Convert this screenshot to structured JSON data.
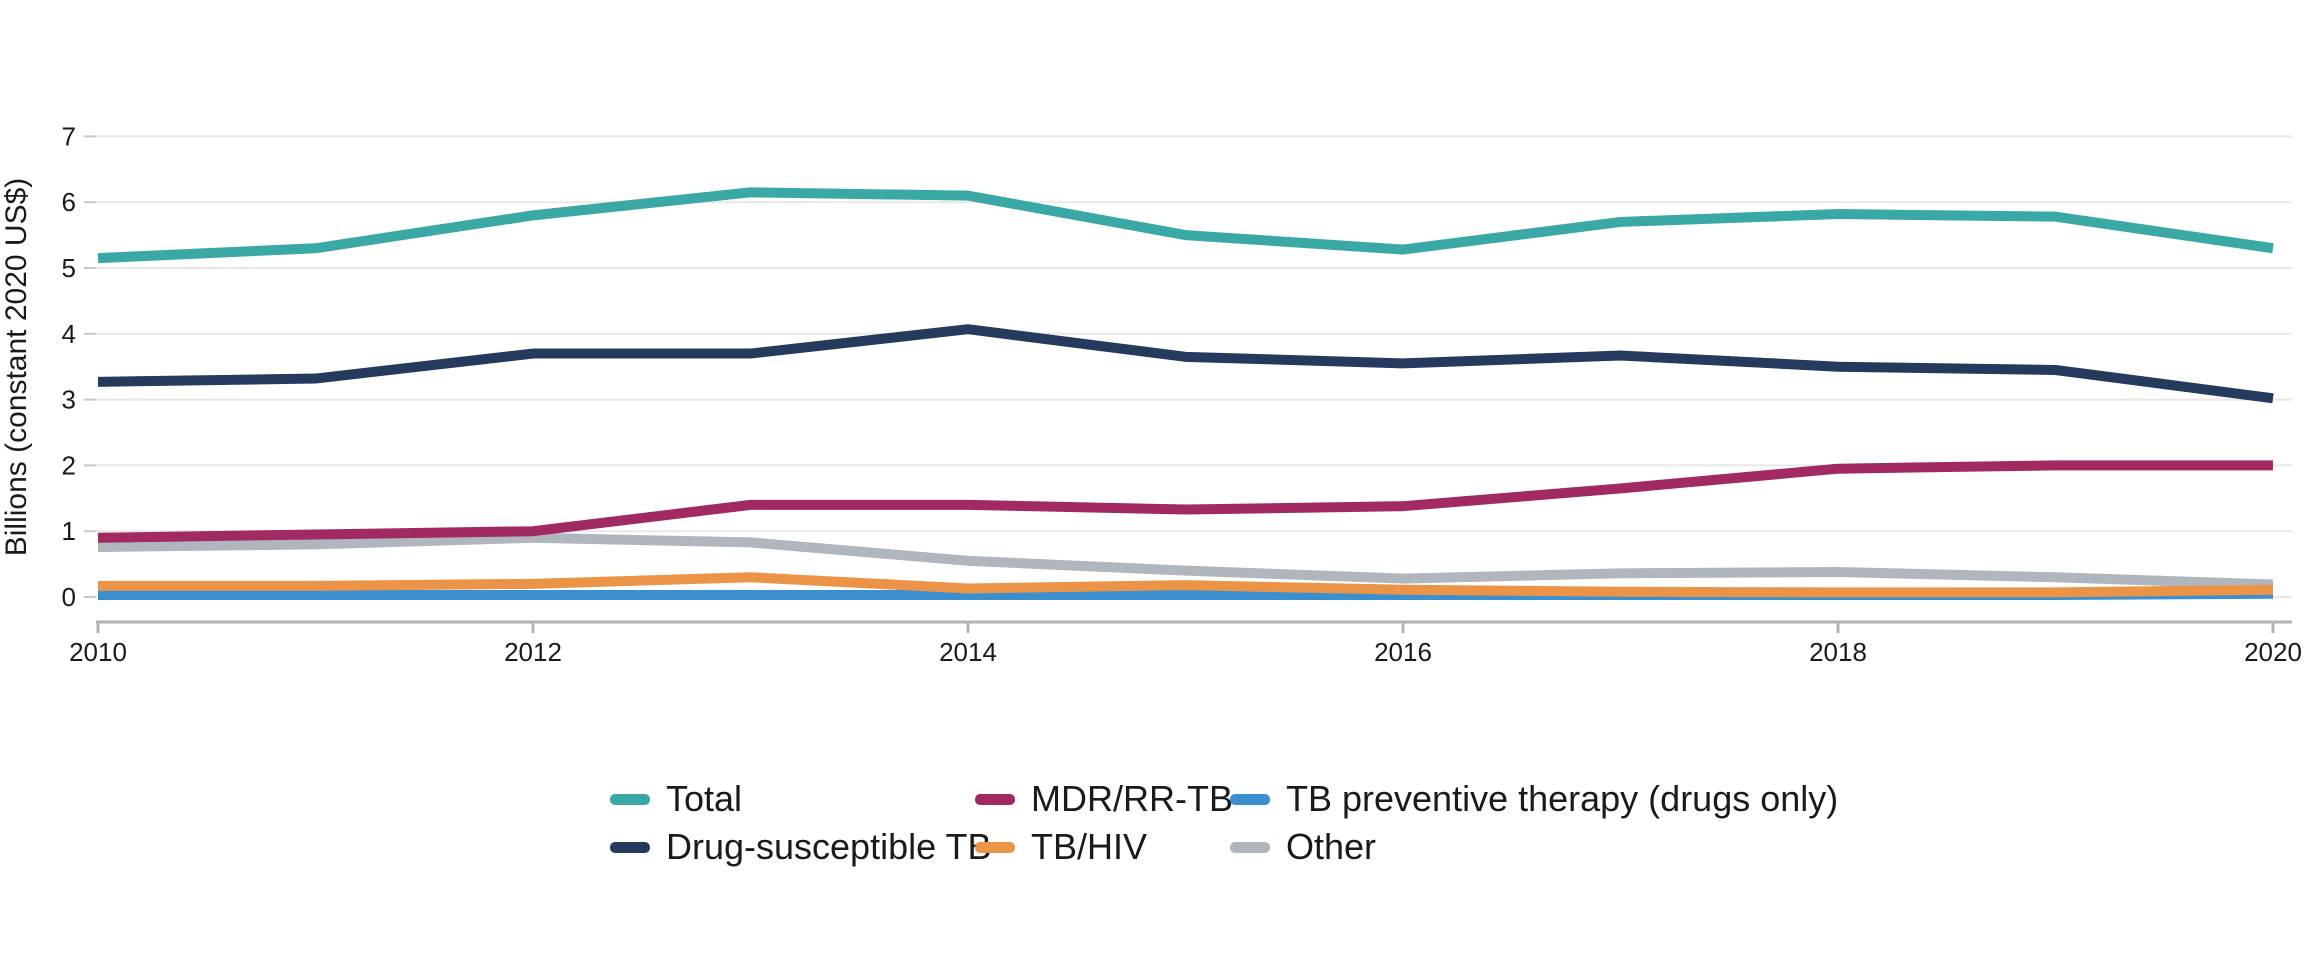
{
  "chart_data": {
    "type": "line",
    "title": "",
    "xlabel": "",
    "ylabel": "Billions (constant 2020 US$)",
    "x": [
      2010,
      2011,
      2012,
      2013,
      2014,
      2015,
      2016,
      2017,
      2018,
      2019,
      2020
    ],
    "x_tick_labels": [
      "2010",
      "2012",
      "2014",
      "2016",
      "2018",
      "2020"
    ],
    "x_ticks": [
      2010,
      2012,
      2014,
      2016,
      2018,
      2020
    ],
    "ylim": [
      0,
      7
    ],
    "y_ticks": [
      0,
      1,
      2,
      3,
      4,
      5,
      6,
      7
    ],
    "grid": "horizontal",
    "legend_position": "bottom",
    "series": [
      {
        "name": "Total",
        "color": "#3AA8A4",
        "values": [
          5.15,
          5.3,
          5.8,
          6.15,
          6.1,
          5.5,
          5.28,
          5.7,
          5.82,
          5.78,
          5.3
        ]
      },
      {
        "name": "Drug-susceptible TB",
        "color": "#243B5E",
        "values": [
          3.27,
          3.32,
          3.7,
          3.7,
          4.07,
          3.65,
          3.55,
          3.67,
          3.5,
          3.45,
          3.02
        ]
      },
      {
        "name": "MDR/RR-TB",
        "color": "#A02A61",
        "values": [
          0.9,
          0.95,
          1.0,
          1.4,
          1.4,
          1.33,
          1.38,
          1.65,
          1.95,
          2.0,
          2.0
        ]
      },
      {
        "name": "TB/HIV",
        "color": "#EB9447",
        "values": [
          0.17,
          0.17,
          0.2,
          0.3,
          0.13,
          0.18,
          0.11,
          0.08,
          0.07,
          0.07,
          0.11
        ]
      },
      {
        "name": "TB preventive therapy (drugs only)",
        "color": "#3A8FD1",
        "values": [
          0.03,
          0.03,
          0.03,
          0.03,
          0.03,
          0.03,
          0.03,
          0.03,
          0.03,
          0.03,
          0.05
        ]
      },
      {
        "name": "Other",
        "color": "#AFB6BE",
        "values": [
          0.76,
          0.8,
          0.9,
          0.83,
          0.55,
          0.4,
          0.28,
          0.36,
          0.38,
          0.3,
          0.19
        ]
      }
    ]
  },
  "legend": {
    "items": [
      {
        "series_index": 0,
        "label": "Total"
      },
      {
        "series_index": 1,
        "label": "Drug-susceptible TB"
      },
      {
        "series_index": 2,
        "label": "MDR/RR-TB"
      },
      {
        "series_index": 3,
        "label": "TB/HIV"
      },
      {
        "series_index": 4,
        "label": "TB preventive therapy (drugs only)"
      },
      {
        "series_index": 5,
        "label": "Other"
      }
    ]
  },
  "colors": {
    "gridline": "#E8E8E8",
    "y_tick": "#C9C9C9",
    "x_axis": "#B3B3B3",
    "text": "#1A1A1A"
  }
}
